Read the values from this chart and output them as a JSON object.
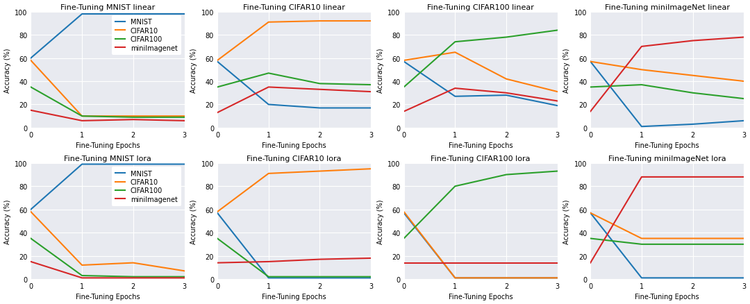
{
  "colors": {
    "MNIST": "#1f77b4",
    "CIFAR10": "#ff7f0e",
    "CIFAR100": "#2ca02c",
    "miniImagenet": "#d62728"
  },
  "epochs": [
    0,
    1,
    2,
    3
  ],
  "plots": [
    {
      "title": "Fine-Tuning MNIST linear",
      "series": {
        "MNIST": [
          60,
          98,
          98,
          98
        ],
        "CIFAR10": [
          58,
          10,
          10,
          10
        ],
        "CIFAR100": [
          35,
          10,
          9,
          9
        ],
        "miniImagenet": [
          15,
          6,
          7,
          6
        ]
      },
      "show_legend": true
    },
    {
      "title": "Fine-Tuning CIFAR10 linear",
      "series": {
        "MNIST": [
          57,
          20,
          17,
          17
        ],
        "CIFAR10": [
          58,
          91,
          92,
          92
        ],
        "CIFAR100": [
          35,
          47,
          38,
          37
        ],
        "miniImagenet": [
          13,
          35,
          33,
          31
        ]
      },
      "show_legend": false
    },
    {
      "title": "Fine-Tuning CIFAR100 linear",
      "series": {
        "MNIST": [
          57,
          27,
          28,
          19
        ],
        "CIFAR10": [
          58,
          65,
          42,
          31
        ],
        "CIFAR100": [
          35,
          74,
          78,
          84
        ],
        "miniImagenet": [
          14,
          34,
          30,
          23
        ]
      },
      "show_legend": false
    },
    {
      "title": "Fine-Tuning miniImageNet linear",
      "series": {
        "MNIST": [
          57,
          1,
          3,
          6
        ],
        "CIFAR10": [
          57,
          50,
          45,
          40
        ],
        "CIFAR100": [
          35,
          37,
          30,
          25
        ],
        "miniImagenet": [
          14,
          70,
          75,
          78
        ]
      },
      "show_legend": false
    },
    {
      "title": "Fine-Tuning MNIST lora",
      "series": {
        "MNIST": [
          60,
          99,
          99,
          99
        ],
        "CIFAR10": [
          58,
          12,
          14,
          7
        ],
        "CIFAR100": [
          35,
          3,
          2,
          2
        ],
        "miniImagenet": [
          15,
          1,
          1,
          1
        ]
      },
      "show_legend": true
    },
    {
      "title": "Fine-Tuning CIFAR10 lora",
      "series": {
        "MNIST": [
          57,
          1,
          1,
          1
        ],
        "CIFAR10": [
          58,
          91,
          93,
          95
        ],
        "CIFAR100": [
          35,
          2,
          2,
          2
        ],
        "miniImagenet": [
          14,
          15,
          17,
          18
        ]
      },
      "show_legend": false
    },
    {
      "title": "Fine-Tuning CIFAR100 lora",
      "series": {
        "MNIST": [
          57,
          1,
          1,
          1
        ],
        "CIFAR10": [
          58,
          1,
          1,
          1
        ],
        "CIFAR100": [
          35,
          80,
          90,
          93
        ],
        "miniImagenet": [
          14,
          14,
          14,
          14
        ]
      },
      "show_legend": false
    },
    {
      "title": "Fine-Tuning miniImageNet lora",
      "series": {
        "MNIST": [
          57,
          1,
          1,
          1
        ],
        "CIFAR10": [
          57,
          35,
          35,
          35
        ],
        "CIFAR100": [
          35,
          30,
          30,
          30
        ],
        "miniImagenet": [
          14,
          88,
          88,
          88
        ]
      },
      "show_legend": false
    }
  ],
  "xlabel": "Fine-Tuning Epochs",
  "ylabel": "Accuracy (%)",
  "ylim": [
    0,
    100
  ],
  "xticks": [
    0,
    1,
    2,
    3
  ],
  "yticks": [
    0,
    20,
    40,
    60,
    80,
    100
  ],
  "bg_color": "#e8eaf0",
  "legend_labels": [
    "MNIST",
    "CIFAR10",
    "CIFAR100",
    "miniImagenet"
  ]
}
